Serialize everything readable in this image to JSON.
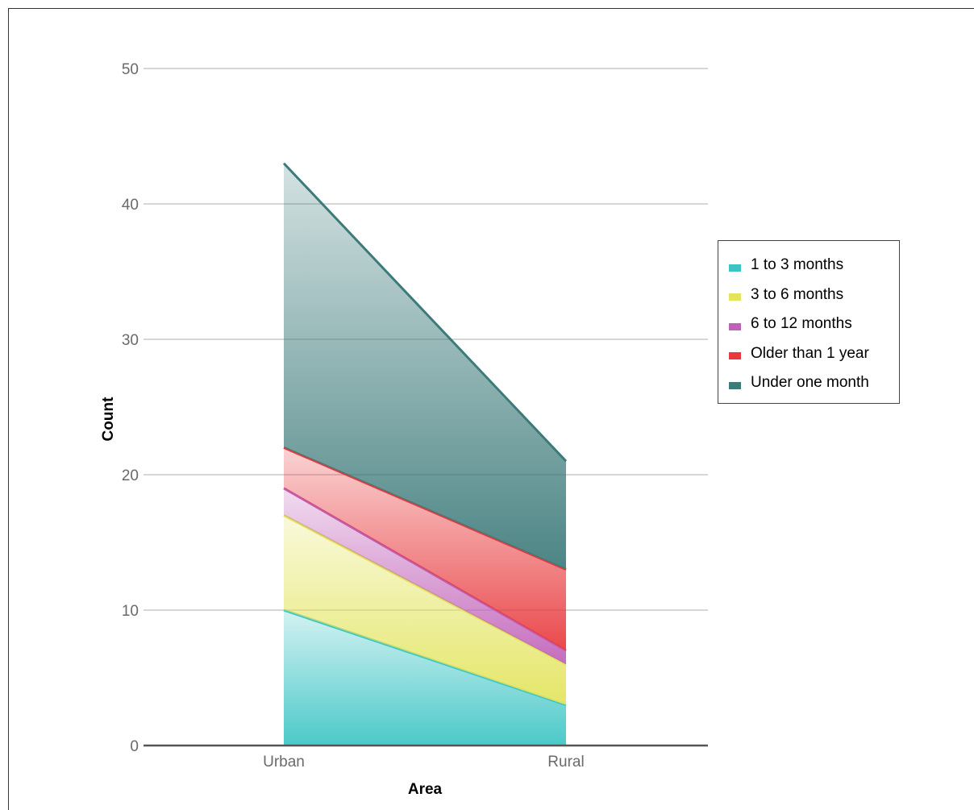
{
  "chart_data": {
    "type": "area",
    "stacked": true,
    "categories": [
      "Urban",
      "Rural"
    ],
    "xlabel": "Area",
    "ylabel": "Count",
    "ylim": [
      0,
      50
    ],
    "yticks": [
      0,
      10,
      20,
      30,
      40,
      50
    ],
    "grid": true,
    "legend_position": "right",
    "series": [
      {
        "name": "1 to 3 months",
        "values": [
          10,
          3
        ],
        "color": "#3cc4c4"
      },
      {
        "name": "3 to 6 months",
        "values": [
          7,
          3
        ],
        "color": "#e2e45a"
      },
      {
        "name": "6 to 12 months",
        "values": [
          2,
          1
        ],
        "color": "#c060b8"
      },
      {
        "name": "Older than 1 year",
        "values": [
          3,
          6
        ],
        "color": "#e8393c"
      },
      {
        "name": "Under one month",
        "values": [
          21,
          8
        ],
        "color": "#3d7a7a"
      }
    ]
  }
}
